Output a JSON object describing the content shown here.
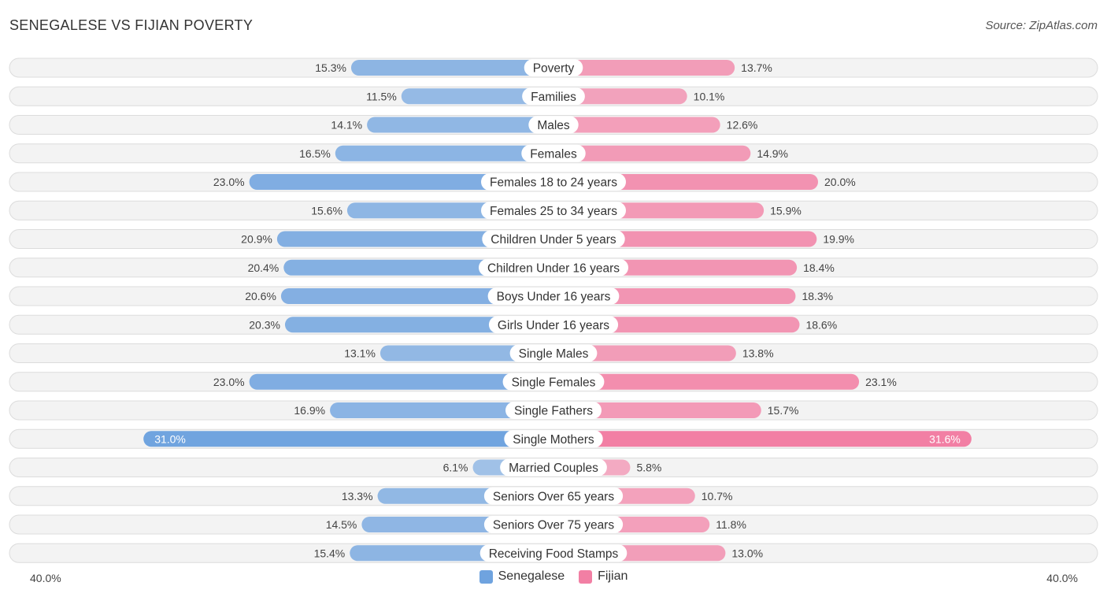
{
  "title": "SENEGALESE VS FIJIAN POVERTY",
  "source": "Source: ZipAtlas.com",
  "axis": {
    "left_label": "40.0%",
    "right_label": "40.0%"
  },
  "colors": {
    "senegalese": "#6fa3df",
    "fijian": "#f27fa4",
    "row_bg": "#eeeeee",
    "row_border": "#dcdcdc"
  },
  "chart_data": {
    "type": "bar",
    "orientation": "diverging-horizontal",
    "title": "SENEGALESE VS FIJIAN POVERTY",
    "xlim": [
      -40,
      40
    ],
    "unit": "%",
    "categories": [
      "Poverty",
      "Families",
      "Males",
      "Females",
      "Females 18 to 24 years",
      "Females 25 to 34 years",
      "Children Under 5 years",
      "Children Under 16 years",
      "Boys Under 16 years",
      "Girls Under 16 years",
      "Single Males",
      "Single Females",
      "Single Fathers",
      "Single Mothers",
      "Married Couples",
      "Seniors Over 65 years",
      "Seniors Over 75 years",
      "Receiving Food Stamps"
    ],
    "series": [
      {
        "name": "Senegalese",
        "side": "left",
        "values": [
          15.3,
          11.5,
          14.1,
          16.5,
          23.0,
          15.6,
          20.9,
          20.4,
          20.6,
          20.3,
          13.1,
          23.0,
          16.9,
          31.0,
          6.1,
          13.3,
          14.5,
          15.4
        ],
        "labels": [
          "15.3%",
          "11.5%",
          "14.1%",
          "16.5%",
          "23.0%",
          "15.6%",
          "20.9%",
          "20.4%",
          "20.6%",
          "20.3%",
          "13.1%",
          "23.0%",
          "16.9%",
          "31.0%",
          "6.1%",
          "13.3%",
          "14.5%",
          "15.4%"
        ]
      },
      {
        "name": "Fijian",
        "side": "right",
        "values": [
          13.7,
          10.1,
          12.6,
          14.9,
          20.0,
          15.9,
          19.9,
          18.4,
          18.3,
          18.6,
          13.8,
          23.1,
          15.7,
          31.6,
          5.8,
          10.7,
          11.8,
          13.0
        ],
        "labels": [
          "13.7%",
          "10.1%",
          "12.6%",
          "14.9%",
          "20.0%",
          "15.9%",
          "19.9%",
          "18.4%",
          "18.3%",
          "18.6%",
          "13.8%",
          "23.1%",
          "15.7%",
          "31.6%",
          "5.8%",
          "10.7%",
          "11.8%",
          "13.0%"
        ]
      }
    ],
    "legend": [
      "Senegalese",
      "Fijian"
    ],
    "legend_position": "bottom-center"
  }
}
